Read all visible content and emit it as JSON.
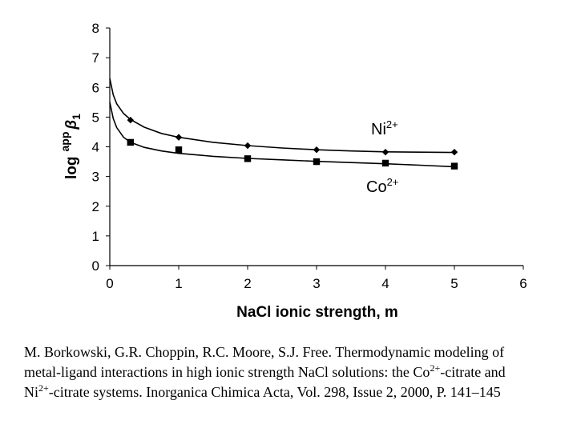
{
  "chart_data": {
    "type": "line",
    "xlabel": "NaCl ionic strength, m",
    "ylabel": {
      "log": "log",
      "sup": "app",
      "beta": "β",
      "sub": "1"
    },
    "xlim": [
      0,
      6
    ],
    "ylim": [
      0,
      8
    ],
    "xticks": [
      "0",
      "1",
      "2",
      "3",
      "4",
      "5",
      "6"
    ],
    "yticks": [
      "0",
      "1",
      "2",
      "3",
      "4",
      "5",
      "6",
      "7",
      "8"
    ],
    "grid": false,
    "legend": "inline-labels",
    "series": [
      {
        "name": "Ni2+",
        "label": {
          "base": "Ni",
          "sup": "2+"
        },
        "marker": "diamond",
        "points": [
          [
            0.3,
            4.9
          ],
          [
            1,
            4.32
          ],
          [
            2,
            4.04
          ],
          [
            3,
            3.9
          ],
          [
            4,
            3.82
          ],
          [
            5,
            3.82
          ]
        ],
        "fit": [
          [
            0,
            6.3
          ],
          [
            0.05,
            5.75
          ],
          [
            0.1,
            5.45
          ],
          [
            0.2,
            5.12
          ],
          [
            0.3,
            4.92
          ],
          [
            0.5,
            4.66
          ],
          [
            0.75,
            4.45
          ],
          [
            1,
            4.32
          ],
          [
            1.5,
            4.15
          ],
          [
            2,
            4.04
          ],
          [
            2.5,
            3.96
          ],
          [
            3,
            3.9
          ],
          [
            3.5,
            3.86
          ],
          [
            4,
            3.83
          ],
          [
            4.5,
            3.82
          ],
          [
            5,
            3.81
          ]
        ]
      },
      {
        "name": "Co2+",
        "label": {
          "base": "Co",
          "sup": "2+"
        },
        "marker": "square",
        "points": [
          [
            0.3,
            4.15
          ],
          [
            1,
            3.9
          ],
          [
            2,
            3.6
          ],
          [
            3,
            3.5
          ],
          [
            4,
            3.45
          ],
          [
            5,
            3.35
          ]
        ],
        "fit": [
          [
            0,
            5.5
          ],
          [
            0.05,
            4.95
          ],
          [
            0.1,
            4.65
          ],
          [
            0.2,
            4.32
          ],
          [
            0.3,
            4.15
          ],
          [
            0.5,
            3.98
          ],
          [
            0.75,
            3.86
          ],
          [
            1,
            3.78
          ],
          [
            1.5,
            3.68
          ],
          [
            2,
            3.61
          ],
          [
            2.5,
            3.56
          ],
          [
            3,
            3.51
          ],
          [
            3.5,
            3.47
          ],
          [
            4,
            3.43
          ],
          [
            4.5,
            3.38
          ],
          [
            5,
            3.33
          ]
        ]
      }
    ]
  },
  "caption": {
    "line1": "M. Borkowski, G.R. Choppin, R.C. Moore, S.J. Free. Thermodynamic modeling of",
    "line2_a": "metal-ligand interactions in high ionic strength NaCl solutions: the Co",
    "line2_sup": "2+",
    "line2_b": "-citrate and",
    "line3_a": "Ni",
    "line3_sup": "2+",
    "line3_b": "-citrate systems. Inorganica Chimica Acta, Vol. 298, Issue 2, 2000, P. 141–145"
  }
}
